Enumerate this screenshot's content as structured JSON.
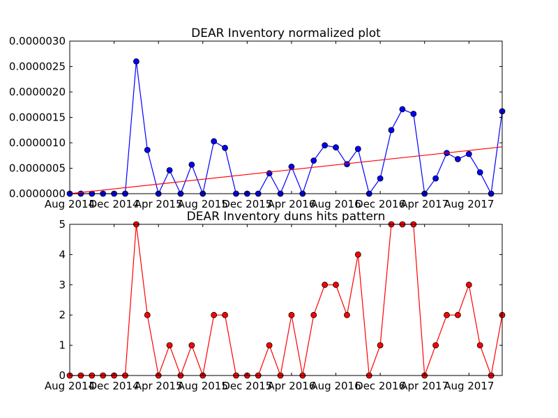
{
  "chart_data": [
    {
      "type": "line",
      "title": "DEAR Inventory normalized plot",
      "xlabel": "",
      "ylabel": "",
      "x": [
        "2014-08",
        "2014-09",
        "2014-10",
        "2014-11",
        "2014-12",
        "2015-01",
        "2015-02",
        "2015-03",
        "2015-04",
        "2015-05",
        "2015-06",
        "2015-07",
        "2015-08",
        "2015-09",
        "2015-10",
        "2015-11",
        "2015-12",
        "2016-01",
        "2016-02",
        "2016-03",
        "2016-04",
        "2016-05",
        "2016-06",
        "2016-07",
        "2016-08",
        "2016-09",
        "2016-10",
        "2016-11",
        "2016-12",
        "2017-01",
        "2017-02",
        "2017-03",
        "2017-04",
        "2017-05",
        "2017-06",
        "2017-07",
        "2017-08",
        "2017-09",
        "2017-10",
        "2017-11"
      ],
      "xlim": [
        "2014-08",
        "2017-11"
      ],
      "ylim": [
        0,
        3e-06
      ],
      "x_tick_labels": [
        "Aug 2014",
        "Dec 2014",
        "Apr 2015",
        "Aug 2015",
        "Dec 2015",
        "Apr 2016",
        "Aug 2016",
        "Dec 2016",
        "Apr 2017",
        "Aug 2017"
      ],
      "x_tick_positions": [
        "2014-08",
        "2014-12",
        "2015-04",
        "2015-08",
        "2015-12",
        "2016-04",
        "2016-08",
        "2016-12",
        "2017-04",
        "2017-08"
      ],
      "y_tick_labels": [
        "0.0000000",
        "0.0000005",
        "0.0000010",
        "0.0000015",
        "0.0000020",
        "0.0000025",
        "0.0000030"
      ],
      "y_ticks": [
        0,
        5e-07,
        1e-06,
        1.5e-06,
        2e-06,
        2.5e-06,
        3e-06
      ],
      "grid": false,
      "series": [
        {
          "color": "#0000ff",
          "marker": "circle",
          "values": [
            0,
            0,
            0,
            0,
            0,
            0,
            2.6e-06,
            8.6e-07,
            0,
            4.6e-07,
            0,
            5.7e-07,
            0,
            1.03e-06,
            9e-07,
            0,
            0,
            0,
            4e-07,
            0,
            5.3e-07,
            0,
            6.5e-07,
            9.5e-07,
            9.1e-07,
            5.8e-07,
            8.8e-07,
            0,
            3e-07,
            1.25e-06,
            1.66e-06,
            1.57e-06,
            0,
            3e-07,
            8e-07,
            6.8e-07,
            7.8e-07,
            4.2e-07,
            0,
            1.62e-06
          ]
        },
        {
          "color": "#ff0000",
          "marker": "none",
          "values_at_ends": [
            0,
            9.2e-07
          ]
        }
      ]
    },
    {
      "type": "line",
      "title": "DEAR Inventory duns hits pattern",
      "xlabel": "",
      "ylabel": "",
      "x": [
        "2014-08",
        "2014-09",
        "2014-10",
        "2014-11",
        "2014-12",
        "2015-01",
        "2015-02",
        "2015-03",
        "2015-04",
        "2015-05",
        "2015-06",
        "2015-07",
        "2015-08",
        "2015-09",
        "2015-10",
        "2015-11",
        "2015-12",
        "2016-01",
        "2016-02",
        "2016-03",
        "2016-04",
        "2016-05",
        "2016-06",
        "2016-07",
        "2016-08",
        "2016-09",
        "2016-10",
        "2016-11",
        "2016-12",
        "2017-01",
        "2017-02",
        "2017-03",
        "2017-04",
        "2017-05",
        "2017-06",
        "2017-07",
        "2017-08",
        "2017-09",
        "2017-10",
        "2017-11"
      ],
      "xlim": [
        "2014-08",
        "2017-11"
      ],
      "ylim": [
        0,
        5
      ],
      "x_tick_labels": [
        "Aug 2014",
        "Dec 2014",
        "Apr 2015",
        "Aug 2015",
        "Dec 2015",
        "Apr 2016",
        "Aug 2016",
        "Dec 2016",
        "Apr 2017",
        "Aug 2017"
      ],
      "x_tick_positions": [
        "2014-08",
        "2014-12",
        "2015-04",
        "2015-08",
        "2015-12",
        "2016-04",
        "2016-08",
        "2016-12",
        "2017-04",
        "2017-08"
      ],
      "y_tick_labels": [
        "0",
        "1",
        "2",
        "3",
        "4",
        "5"
      ],
      "y_ticks": [
        0,
        1,
        2,
        3,
        4,
        5
      ],
      "grid": false,
      "series": [
        {
          "color": "#ff0000",
          "marker": "circle",
          "values": [
            0,
            0,
            0,
            0,
            0,
            0,
            5,
            2,
            0,
            1,
            0,
            1,
            0,
            2,
            2,
            0,
            0,
            0,
            1,
            0,
            2,
            0,
            2,
            3,
            3,
            2,
            4,
            0,
            1,
            5,
            5,
            5,
            0,
            1,
            2,
            2,
            3,
            1,
            0,
            2
          ]
        }
      ]
    }
  ]
}
